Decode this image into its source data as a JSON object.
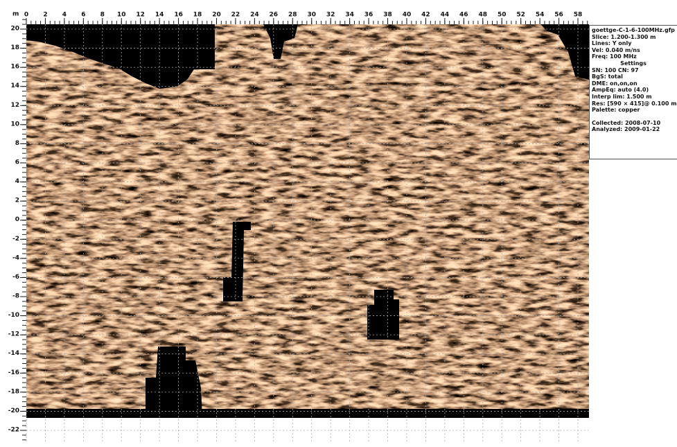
{
  "axes": {
    "unit": "m",
    "xticks": [
      0,
      2,
      4,
      6,
      8,
      10,
      12,
      14,
      16,
      18,
      20,
      22,
      24,
      26,
      28,
      30,
      32,
      34,
      36,
      38,
      40,
      42,
      44,
      46,
      48,
      50,
      52,
      54,
      56,
      58
    ],
    "yticks": [
      20,
      18,
      16,
      14,
      12,
      10,
      8,
      6,
      4,
      2,
      0,
      -2,
      -4,
      -6,
      -8,
      -10,
      -12,
      -14,
      -16,
      -18,
      -20,
      -22
    ]
  },
  "info": {
    "file": "goettge-C-1-6-100MHz.gfp",
    "header_lines": [
      "Slice: 1.200-1.300 m",
      "Lines: Y only",
      "Vel: 0.040 m/ns",
      "Freq: 100 MHz"
    ],
    "settings_title": "Settings",
    "settings_lines": [
      "SN: 100  CN: 97",
      "BgS: total",
      "DME: on,on,on",
      "AmpEq: auto (4.0)",
      "Interp lim: 1.500 m",
      "Res: [590 × 415]@ 0.100 m",
      "Palette: copper"
    ],
    "date_lines": [
      "Collected: 2008-07-10",
      "Analyzed: 2009-01-22"
    ]
  }
}
